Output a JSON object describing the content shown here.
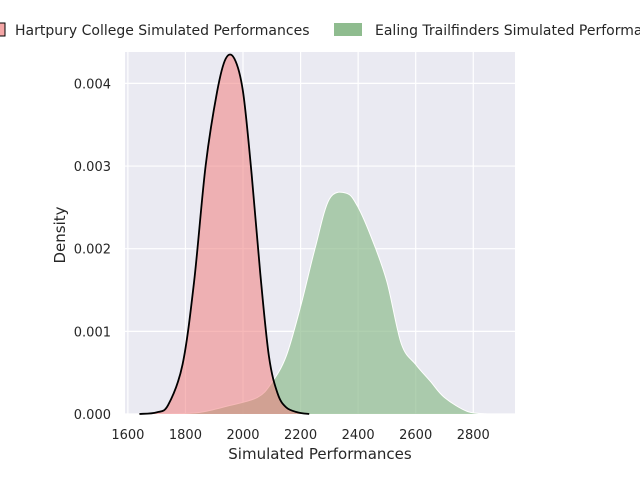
{
  "chart_data": {
    "type": "area",
    "title": "",
    "xlabel": "Simulated Performances",
    "ylabel": "Density",
    "xlim": [
      1590,
      2945
    ],
    "ylim": [
      0,
      0.00438
    ],
    "x_ticks": [
      1600,
      1800,
      2000,
      2200,
      2400,
      2600,
      2800
    ],
    "y_ticks": [
      0.0,
      0.001,
      0.002,
      0.003,
      0.004
    ],
    "x_tick_labels": [
      "1600",
      "1800",
      "2000",
      "2200",
      "2400",
      "2600",
      "2800"
    ],
    "y_tick_labels": [
      "0.000",
      "0.001",
      "0.002",
      "0.003",
      "0.004"
    ],
    "grid": true,
    "legend_position": "top",
    "series": [
      {
        "name": "Hartpury College Simulated Performances",
        "fill_color": "#f08080",
        "line_color": "#000000",
        "points": [
          [
            1640,
            0.0
          ],
          [
            1700,
            2e-05
          ],
          [
            1740,
            0.00011
          ],
          [
            1790,
            0.0006
          ],
          [
            1830,
            0.0016
          ],
          [
            1870,
            0.003
          ],
          [
            1910,
            0.0039
          ],
          [
            1940,
            0.0043
          ],
          [
            1970,
            0.0043
          ],
          [
            2000,
            0.0039
          ],
          [
            2030,
            0.0029
          ],
          [
            2060,
            0.0017
          ],
          [
            2090,
            0.0007
          ],
          [
            2120,
            0.00025
          ],
          [
            2150,
            8e-05
          ],
          [
            2190,
            2e-05
          ],
          [
            2230,
            0.0
          ]
        ]
      },
      {
        "name": "Ealing Trailfinders Simulated Performances",
        "fill_color": "#8fbc8f",
        "line_color": "#ffffff",
        "points": [
          [
            1740,
            0.0
          ],
          [
            1850,
            2e-05
          ],
          [
            1950,
            0.0001
          ],
          [
            2050,
            0.0002
          ],
          [
            2100,
            0.00038
          ],
          [
            2150,
            0.0007
          ],
          [
            2200,
            0.0013
          ],
          [
            2250,
            0.002
          ],
          [
            2300,
            0.0026
          ],
          [
            2360,
            0.00267
          ],
          [
            2400,
            0.0025
          ],
          [
            2450,
            0.0021
          ],
          [
            2500,
            0.0016
          ],
          [
            2550,
            0.00085
          ],
          [
            2600,
            0.0006
          ],
          [
            2650,
            0.0004
          ],
          [
            2700,
            0.0002
          ],
          [
            2780,
            3e-05
          ],
          [
            2850,
            0.0
          ]
        ]
      }
    ]
  }
}
